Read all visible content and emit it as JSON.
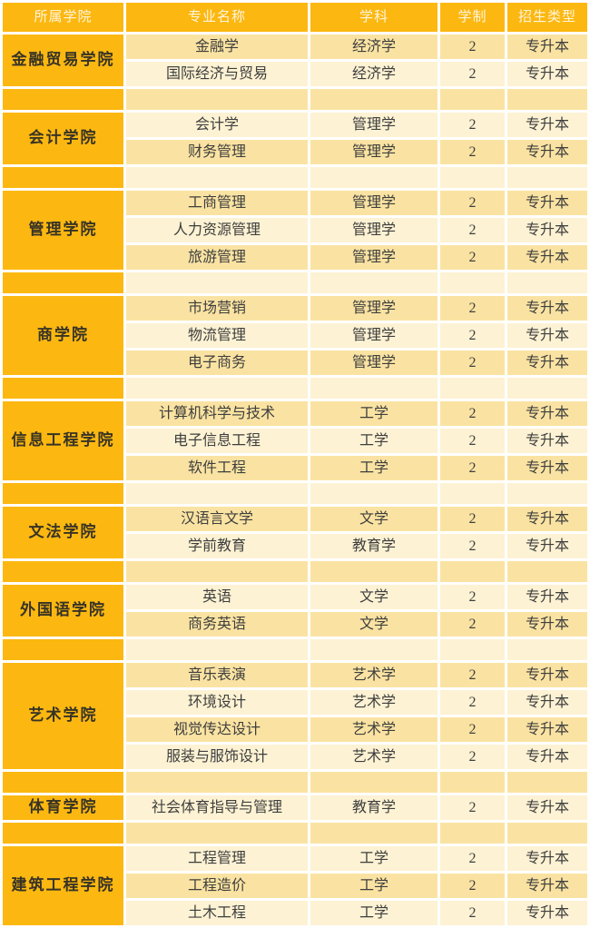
{
  "colors": {
    "accent_orange": "#FCB811",
    "row_dark": "#FAE3A2",
    "row_light": "#FDF2D3",
    "header_text": "#FFF4DC",
    "college_text": "#383325",
    "body_text": "#3E3E3E"
  },
  "table": {
    "header": {
      "columns": [
        "所属学院",
        "专业名称",
        "学科",
        "学制",
        "招生类型"
      ]
    },
    "groups": [
      {
        "college": "金融贸易学院",
        "majors": [
          {
            "name": "金融学",
            "discipline": "经济学",
            "years": "2",
            "type": "专升本"
          },
          {
            "name": "国际经济与贸易",
            "discipline": "经济学",
            "years": "2",
            "type": "专升本"
          }
        ]
      },
      {
        "college": "会计学院",
        "majors": [
          {
            "name": "会计学",
            "discipline": "管理学",
            "years": "2",
            "type": "专升本"
          },
          {
            "name": "财务管理",
            "discipline": "管理学",
            "years": "2",
            "type": "专升本"
          }
        ]
      },
      {
        "college": "管理学院",
        "majors": [
          {
            "name": "工商管理",
            "discipline": "管理学",
            "years": "2",
            "type": "专升本"
          },
          {
            "name": "人力资源管理",
            "discipline": "管理学",
            "years": "2",
            "type": "专升本"
          },
          {
            "name": "旅游管理",
            "discipline": "管理学",
            "years": "2",
            "type": "专升本"
          }
        ]
      },
      {
        "college": "商学院",
        "majors": [
          {
            "name": "市场营销",
            "discipline": "管理学",
            "years": "2",
            "type": "专升本"
          },
          {
            "name": "物流管理",
            "discipline": "管理学",
            "years": "2",
            "type": "专升本"
          },
          {
            "name": "电子商务",
            "discipline": "管理学",
            "years": "2",
            "type": "专升本"
          }
        ]
      },
      {
        "college": "信息工程学院",
        "majors": [
          {
            "name": "计算机科学与技术",
            "discipline": "工学",
            "years": "2",
            "type": "专升本"
          },
          {
            "name": "电子信息工程",
            "discipline": "工学",
            "years": "2",
            "type": "专升本"
          },
          {
            "name": "软件工程",
            "discipline": "工学",
            "years": "2",
            "type": "专升本"
          }
        ]
      },
      {
        "college": "文法学院",
        "majors": [
          {
            "name": "汉语言文学",
            "discipline": "文学",
            "years": "2",
            "type": "专升本"
          },
          {
            "name": "学前教育",
            "discipline": "教育学",
            "years": "2",
            "type": "专升本"
          }
        ]
      },
      {
        "college": "外国语学院",
        "majors": [
          {
            "name": "英语",
            "discipline": "文学",
            "years": "2",
            "type": "专升本"
          },
          {
            "name": "商务英语",
            "discipline": "文学",
            "years": "2",
            "type": "专升本"
          }
        ]
      },
      {
        "college": "艺术学院",
        "majors": [
          {
            "name": "音乐表演",
            "discipline": "艺术学",
            "years": "2",
            "type": "专升本"
          },
          {
            "name": "环境设计",
            "discipline": "艺术学",
            "years": "2",
            "type": "专升本"
          },
          {
            "name": "视觉传达设计",
            "discipline": "艺术学",
            "years": "2",
            "type": "专升本"
          },
          {
            "name": "服装与服饰设计",
            "discipline": "艺术学",
            "years": "2",
            "type": "专升本"
          }
        ]
      },
      {
        "college": "体育学院",
        "majors": [
          {
            "name": "社会体育指导与管理",
            "discipline": "教育学",
            "years": "2",
            "type": "专升本"
          }
        ]
      },
      {
        "college": "建筑工程学院",
        "majors": [
          {
            "name": "工程管理",
            "discipline": "工学",
            "years": "2",
            "type": "专升本"
          },
          {
            "name": "工程造价",
            "discipline": "工学",
            "years": "2",
            "type": "专升本"
          },
          {
            "name": "土木工程",
            "discipline": "工学",
            "years": "2",
            "type": "专升本"
          }
        ]
      }
    ]
  }
}
